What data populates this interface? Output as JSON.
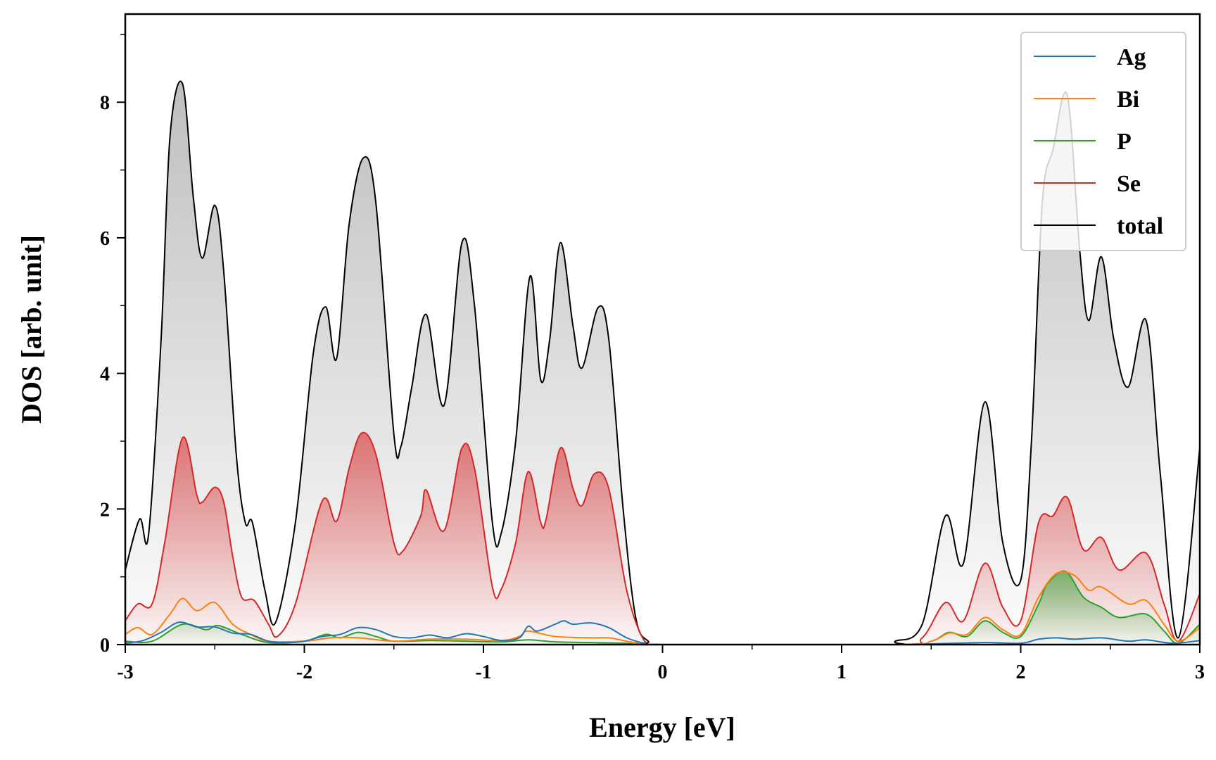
{
  "chart_data": {
    "type": "area",
    "title": "",
    "xlabel": "Energy [eV]",
    "ylabel": "DOS [arb. unit]",
    "xlim": [
      -3,
      3
    ],
    "ylim": [
      0,
      9.3
    ],
    "xticks": [
      -3,
      -2,
      -1,
      0,
      1,
      2,
      3
    ],
    "xtick_labels": [
      "-3",
      "-2",
      "-1",
      "0",
      "1",
      "2",
      "3"
    ],
    "yticks": [
      0,
      2,
      4,
      6,
      8
    ],
    "ytick_labels": [
      "0",
      "2",
      "4",
      "6",
      "8"
    ],
    "grid": false,
    "legend_position": "top-right",
    "series": [
      {
        "name": "Ag",
        "color": "#1f77b4",
        "filled": false,
        "points": [
          [
            -3,
            0.02
          ],
          [
            -2.9,
            0.06
          ],
          [
            -2.8,
            0.18
          ],
          [
            -2.7,
            0.33
          ],
          [
            -2.6,
            0.26
          ],
          [
            -2.5,
            0.26
          ],
          [
            -2.4,
            0.17
          ],
          [
            -2.3,
            0.15
          ],
          [
            -2.2,
            0.05
          ],
          [
            -2.1,
            0.03
          ],
          [
            -2.0,
            0.05
          ],
          [
            -1.9,
            0.12
          ],
          [
            -1.8,
            0.15
          ],
          [
            -1.7,
            0.25
          ],
          [
            -1.6,
            0.22
          ],
          [
            -1.5,
            0.12
          ],
          [
            -1.4,
            0.1
          ],
          [
            -1.3,
            0.14
          ],
          [
            -1.2,
            0.1
          ],
          [
            -1.1,
            0.16
          ],
          [
            -1.0,
            0.12
          ],
          [
            -0.9,
            0.06
          ],
          [
            -0.8,
            0.1
          ],
          [
            -0.75,
            0.27
          ],
          [
            -0.7,
            0.2
          ],
          [
            -0.6,
            0.3
          ],
          [
            -0.55,
            0.35
          ],
          [
            -0.5,
            0.3
          ],
          [
            -0.4,
            0.32
          ],
          [
            -0.3,
            0.25
          ],
          [
            -0.2,
            0.1
          ],
          [
            -0.1,
            0.02
          ],
          [
            0,
            0
          ],
          [
            1.3,
            0
          ],
          [
            1.5,
            0.01
          ],
          [
            1.8,
            0.03
          ],
          [
            2.0,
            0.02
          ],
          [
            2.1,
            0.08
          ],
          [
            2.2,
            0.1
          ],
          [
            2.3,
            0.08
          ],
          [
            2.45,
            0.1
          ],
          [
            2.6,
            0.05
          ],
          [
            2.7,
            0.07
          ],
          [
            2.85,
            0.02
          ],
          [
            3.0,
            0.06
          ]
        ]
      },
      {
        "name": "Bi",
        "color": "#ff7f0e",
        "filled": false,
        "points": [
          [
            -3,
            0.15
          ],
          [
            -2.93,
            0.25
          ],
          [
            -2.85,
            0.15
          ],
          [
            -2.75,
            0.45
          ],
          [
            -2.68,
            0.68
          ],
          [
            -2.6,
            0.5
          ],
          [
            -2.5,
            0.62
          ],
          [
            -2.4,
            0.3
          ],
          [
            -2.3,
            0.15
          ],
          [
            -2.2,
            0.05
          ],
          [
            -2.0,
            0.05
          ],
          [
            -1.85,
            0.1
          ],
          [
            -1.7,
            0.1
          ],
          [
            -1.5,
            0.05
          ],
          [
            -1.3,
            0.08
          ],
          [
            -1.1,
            0.08
          ],
          [
            -0.9,
            0.06
          ],
          [
            -0.8,
            0.12
          ],
          [
            -0.75,
            0.2
          ],
          [
            -0.6,
            0.12
          ],
          [
            -0.4,
            0.1
          ],
          [
            -0.3,
            0.1
          ],
          [
            -0.2,
            0.05
          ],
          [
            -0.1,
            0.01
          ],
          [
            0,
            0
          ],
          [
            1.3,
            0
          ],
          [
            1.5,
            0.05
          ],
          [
            1.6,
            0.17
          ],
          [
            1.7,
            0.15
          ],
          [
            1.8,
            0.4
          ],
          [
            1.9,
            0.22
          ],
          [
            2.0,
            0.15
          ],
          [
            2.1,
            0.7
          ],
          [
            2.2,
            1.05
          ],
          [
            2.3,
            1.02
          ],
          [
            2.38,
            0.8
          ],
          [
            2.45,
            0.85
          ],
          [
            2.6,
            0.6
          ],
          [
            2.7,
            0.65
          ],
          [
            2.8,
            0.3
          ],
          [
            2.88,
            0.05
          ],
          [
            3.0,
            0.25
          ]
        ]
      },
      {
        "name": "P",
        "color": "#2ca02c",
        "filled": true,
        "points": [
          [
            -3,
            0.05
          ],
          [
            -2.85,
            0.05
          ],
          [
            -2.68,
            0.3
          ],
          [
            -2.55,
            0.22
          ],
          [
            -2.48,
            0.28
          ],
          [
            -2.35,
            0.15
          ],
          [
            -2.2,
            0.03
          ],
          [
            -2.0,
            0.05
          ],
          [
            -1.88,
            0.15
          ],
          [
            -1.8,
            0.1
          ],
          [
            -1.7,
            0.18
          ],
          [
            -1.6,
            0.12
          ],
          [
            -1.5,
            0.05
          ],
          [
            -1.3,
            0.06
          ],
          [
            -1.1,
            0.05
          ],
          [
            -0.9,
            0.04
          ],
          [
            -0.75,
            0.07
          ],
          [
            -0.6,
            0.04
          ],
          [
            -0.4,
            0.03
          ],
          [
            -0.2,
            0.02
          ],
          [
            0,
            0
          ],
          [
            1.3,
            0
          ],
          [
            1.5,
            0.05
          ],
          [
            1.6,
            0.18
          ],
          [
            1.7,
            0.12
          ],
          [
            1.8,
            0.35
          ],
          [
            1.9,
            0.18
          ],
          [
            2.0,
            0.12
          ],
          [
            2.1,
            0.6
          ],
          [
            2.15,
            0.9
          ],
          [
            2.25,
            1.08
          ],
          [
            2.35,
            0.7
          ],
          [
            2.45,
            0.55
          ],
          [
            2.55,
            0.4
          ],
          [
            2.7,
            0.45
          ],
          [
            2.8,
            0.2
          ],
          [
            2.88,
            0.02
          ],
          [
            3.0,
            0.3
          ]
        ]
      },
      {
        "name": "Se",
        "color": "#d62728",
        "filled": true,
        "points": [
          [
            -3,
            0.35
          ],
          [
            -2.93,
            0.6
          ],
          [
            -2.85,
            0.6
          ],
          [
            -2.78,
            1.5
          ],
          [
            -2.68,
            3.05
          ],
          [
            -2.6,
            2.2
          ],
          [
            -2.57,
            2.1
          ],
          [
            -2.5,
            2.32
          ],
          [
            -2.45,
            2.1
          ],
          [
            -2.4,
            1.3
          ],
          [
            -2.35,
            0.7
          ],
          [
            -2.28,
            0.65
          ],
          [
            -2.2,
            0.3
          ],
          [
            -2.15,
            0.12
          ],
          [
            -2.05,
            0.6
          ],
          [
            -1.9,
            2.12
          ],
          [
            -1.82,
            1.82
          ],
          [
            -1.75,
            2.6
          ],
          [
            -1.68,
            3.12
          ],
          [
            -1.6,
            2.8
          ],
          [
            -1.5,
            1.5
          ],
          [
            -1.45,
            1.38
          ],
          [
            -1.35,
            1.9
          ],
          [
            -1.32,
            2.28
          ],
          [
            -1.22,
            1.68
          ],
          [
            -1.12,
            2.9
          ],
          [
            -1.05,
            2.6
          ],
          [
            -0.95,
            0.85
          ],
          [
            -0.9,
            0.82
          ],
          [
            -0.82,
            1.5
          ],
          [
            -0.75,
            2.55
          ],
          [
            -0.68,
            1.8
          ],
          [
            -0.65,
            1.85
          ],
          [
            -0.57,
            2.9
          ],
          [
            -0.5,
            2.3
          ],
          [
            -0.45,
            2.05
          ],
          [
            -0.38,
            2.52
          ],
          [
            -0.3,
            2.3
          ],
          [
            -0.2,
            0.8
          ],
          [
            -0.1,
            0.05
          ],
          [
            0,
            0
          ],
          [
            1.3,
            0
          ],
          [
            1.45,
            0.1
          ],
          [
            1.58,
            0.62
          ],
          [
            1.68,
            0.35
          ],
          [
            1.8,
            1.2
          ],
          [
            1.9,
            0.55
          ],
          [
            2.0,
            0.35
          ],
          [
            2.1,
            1.8
          ],
          [
            2.18,
            1.9
          ],
          [
            2.26,
            2.17
          ],
          [
            2.35,
            1.4
          ],
          [
            2.45,
            1.58
          ],
          [
            2.55,
            1.1
          ],
          [
            2.7,
            1.35
          ],
          [
            2.8,
            0.6
          ],
          [
            2.88,
            0.05
          ],
          [
            3.0,
            0.75
          ]
        ]
      },
      {
        "name": "total",
        "color": "#000000",
        "filled": true,
        "points": [
          [
            -3,
            1.1
          ],
          [
            -2.92,
            1.85
          ],
          [
            -2.87,
            1.62
          ],
          [
            -2.8,
            4.5
          ],
          [
            -2.75,
            7.5
          ],
          [
            -2.68,
            8.27
          ],
          [
            -2.62,
            6.6
          ],
          [
            -2.57,
            5.7
          ],
          [
            -2.5,
            6.48
          ],
          [
            -2.45,
            5.5
          ],
          [
            -2.38,
            2.8
          ],
          [
            -2.33,
            1.8
          ],
          [
            -2.29,
            1.8
          ],
          [
            -2.22,
            0.8
          ],
          [
            -2.16,
            0.33
          ],
          [
            -2.05,
            1.8
          ],
          [
            -1.95,
            4.3
          ],
          [
            -1.88,
            4.98
          ],
          [
            -1.82,
            4.22
          ],
          [
            -1.75,
            6.2
          ],
          [
            -1.67,
            7.18
          ],
          [
            -1.6,
            6.5
          ],
          [
            -1.5,
            3.1
          ],
          [
            -1.46,
            2.93
          ],
          [
            -1.4,
            3.8
          ],
          [
            -1.32,
            4.87
          ],
          [
            -1.22,
            3.53
          ],
          [
            -1.12,
            5.93
          ],
          [
            -1.05,
            5.0
          ],
          [
            -0.95,
            1.8
          ],
          [
            -0.9,
            1.65
          ],
          [
            -0.82,
            3.0
          ],
          [
            -0.74,
            5.43
          ],
          [
            -0.68,
            3.9
          ],
          [
            -0.63,
            4.5
          ],
          [
            -0.57,
            5.93
          ],
          [
            -0.5,
            4.7
          ],
          [
            -0.45,
            4.08
          ],
          [
            -0.36,
            4.97
          ],
          [
            -0.3,
            4.5
          ],
          [
            -0.22,
            2.0
          ],
          [
            -0.15,
            0.4
          ],
          [
            -0.08,
            0.05
          ],
          [
            0,
            0
          ],
          [
            1.25,
            0
          ],
          [
            1.3,
            0.05
          ],
          [
            1.45,
            0.3
          ],
          [
            1.58,
            1.9
          ],
          [
            1.68,
            1.2
          ],
          [
            1.8,
            3.58
          ],
          [
            1.9,
            1.5
          ],
          [
            2.0,
            0.95
          ],
          [
            2.06,
            3.0
          ],
          [
            2.12,
            6.5
          ],
          [
            2.18,
            7.3
          ],
          [
            2.26,
            8.1
          ],
          [
            2.33,
            5.8
          ],
          [
            2.38,
            4.78
          ],
          [
            2.45,
            5.72
          ],
          [
            2.52,
            4.5
          ],
          [
            2.6,
            3.8
          ],
          [
            2.7,
            4.78
          ],
          [
            2.78,
            2.5
          ],
          [
            2.88,
            0.1
          ],
          [
            3.0,
            2.9
          ]
        ]
      }
    ]
  }
}
